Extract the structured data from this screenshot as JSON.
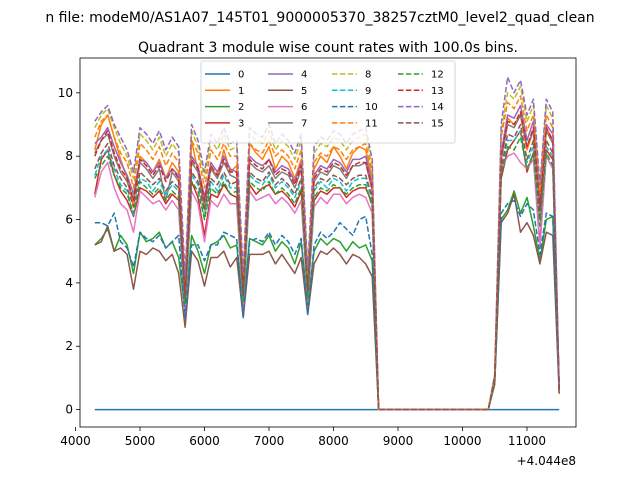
{
  "chart_data": {
    "type": "line",
    "suptitle": "n file: modeM0/AS1A07_145T01_9000005370_38257cztM0_level2_quad_clean",
    "title": "Quadrant 3 module wise count rates with 100.0s bins.",
    "xlabel": "",
    "ylabel": "",
    "offset_label": "+4.044e8",
    "xlim": [
      4070,
      11760
    ],
    "ylim": [
      -0.55,
      11.1
    ],
    "xticks": [
      4000,
      5000,
      6000,
      7000,
      8000,
      9000,
      10000,
      11000
    ],
    "xtick_labels": [
      "4000",
      "5000",
      "6000",
      "7000",
      "8000",
      "9000",
      "10000",
      "11000"
    ],
    "yticks": [
      0,
      2,
      4,
      6,
      8,
      10
    ],
    "ytick_labels": [
      "0",
      "2",
      "4",
      "6",
      "8",
      "10"
    ],
    "legend_position": "upper-center",
    "legend_columns": 4,
    "x": [
      4300,
      4400,
      4500,
      4600,
      4700,
      4800,
      4900,
      5000,
      5100,
      5200,
      5300,
      5400,
      5500,
      5600,
      5700,
      5800,
      5900,
      6000,
      6100,
      6200,
      6300,
      6400,
      6500,
      6600,
      6700,
      6800,
      6900,
      7000,
      7100,
      7200,
      7300,
      7400,
      7500,
      7600,
      7700,
      7800,
      7900,
      8000,
      8100,
      8200,
      8300,
      8400,
      8500,
      8600,
      8700,
      10400,
      10500,
      10600,
      10700,
      10800,
      10900,
      11000,
      11100,
      11200,
      11300,
      11400,
      11500
    ],
    "series": [
      {
        "name": "0",
        "color": "#1f77b4",
        "dash": "solid",
        "values": [
          0,
          0,
          0,
          0,
          0,
          0,
          0,
          0,
          0,
          0,
          0,
          0,
          0,
          0,
          0,
          0,
          0,
          0,
          0,
          0,
          0,
          0,
          0,
          0,
          0,
          0,
          0,
          0,
          0,
          0,
          0,
          0,
          0,
          0,
          0,
          0,
          0,
          0,
          0,
          0,
          0,
          0,
          0,
          0,
          0,
          0,
          0,
          0,
          0,
          0,
          0,
          0,
          0,
          0,
          0,
          0,
          0
        ]
      },
      {
        "name": "1",
        "color": "#ff7f0e",
        "dash": "solid",
        "values": [
          8.2,
          9.0,
          9.3,
          8.6,
          7.9,
          7.3,
          6.4,
          8.0,
          7.8,
          7.5,
          7.9,
          7.3,
          7.8,
          7.5,
          3.6,
          8.5,
          7.5,
          6.3,
          7.7,
          7.3,
          8.2,
          7.5,
          7.7,
          4.0,
          8.4,
          8.1,
          7.9,
          8.3,
          7.6,
          8.0,
          7.8,
          7.3,
          7.9,
          4.1,
          7.6,
          8.0,
          7.8,
          8.3,
          8.0,
          7.6,
          8.1,
          8.3,
          8.2,
          7.3,
          0,
          0,
          1.0,
          7.9,
          9.2,
          9.0,
          9.3,
          8.2,
          8.8,
          6.3,
          8.9,
          8.5,
          0.5
        ]
      },
      {
        "name": "2",
        "color": "#2ca02c",
        "dash": "solid",
        "values": [
          5.2,
          5.4,
          5.7,
          5.0,
          5.5,
          5.2,
          4.3,
          5.6,
          5.3,
          5.4,
          5.6,
          5.1,
          5.3,
          4.8,
          3.1,
          5.5,
          5.0,
          4.3,
          5.2,
          5.3,
          5.5,
          5.1,
          5.2,
          3.2,
          5.4,
          5.3,
          5.2,
          5.5,
          5.0,
          5.3,
          5.1,
          4.6,
          5.3,
          3.3,
          5.0,
          5.4,
          5.2,
          5.4,
          5.3,
          5.0,
          5.3,
          5.1,
          5.2,
          4.7,
          0,
          0,
          0.8,
          6.0,
          6.3,
          6.9,
          6.2,
          6.7,
          5.8,
          4.7,
          6.0,
          6.1,
          0.6
        ]
      },
      {
        "name": "3",
        "color": "#d62728",
        "dash": "solid",
        "values": [
          6.8,
          7.9,
          8.2,
          7.4,
          6.9,
          6.6,
          6.1,
          7.0,
          6.9,
          6.7,
          6.9,
          6.5,
          6.8,
          6.6,
          3.1,
          7.2,
          6.7,
          5.5,
          6.8,
          6.7,
          7.1,
          6.8,
          6.7,
          3.3,
          7.1,
          6.8,
          7.0,
          7.1,
          6.8,
          6.9,
          6.7,
          6.4,
          6.9,
          3.5,
          6.6,
          6.9,
          6.8,
          7.0,
          7.0,
          6.7,
          6.9,
          7.0,
          7.0,
          6.5,
          0,
          0,
          0.9,
          7.3,
          8.2,
          8.5,
          8.8,
          7.5,
          8.1,
          5.2,
          8.2,
          7.9,
          0.6
        ]
      },
      {
        "name": "4",
        "color": "#9467bd",
        "dash": "solid",
        "values": [
          8.4,
          8.6,
          8.9,
          8.3,
          7.8,
          7.4,
          6.8,
          7.9,
          7.8,
          7.5,
          7.8,
          7.3,
          7.6,
          7.4,
          3.7,
          8.0,
          7.7,
          6.7,
          7.8,
          7.5,
          8.0,
          7.6,
          7.5,
          3.9,
          8.0,
          7.8,
          7.7,
          7.9,
          7.5,
          7.7,
          7.6,
          7.2,
          7.8,
          4.0,
          7.4,
          7.7,
          7.6,
          7.9,
          7.8,
          7.5,
          7.9,
          7.9,
          8.0,
          7.1,
          0,
          0,
          1.0,
          8.1,
          9.3,
          9.2,
          9.6,
          8.5,
          9.1,
          6.6,
          9.0,
          8.7,
          0.6
        ]
      },
      {
        "name": "5",
        "color": "#8c564b",
        "dash": "solid",
        "values": [
          5.2,
          5.3,
          5.8,
          5.0,
          5.1,
          4.9,
          3.8,
          5.0,
          4.9,
          5.1,
          5.0,
          4.7,
          4.9,
          4.3,
          2.6,
          5.0,
          4.7,
          3.9,
          4.8,
          4.8,
          5.0,
          4.5,
          4.8,
          2.9,
          4.9,
          4.9,
          4.9,
          5.0,
          4.6,
          4.9,
          4.6,
          4.3,
          4.8,
          3.0,
          4.6,
          5.0,
          4.9,
          5.1,
          4.9,
          4.6,
          4.9,
          4.8,
          4.6,
          4.2,
          0,
          0,
          0.8,
          5.9,
          6.2,
          6.8,
          5.6,
          5.9,
          5.5,
          4.6,
          5.6,
          5.5,
          0.5
        ]
      },
      {
        "name": "6",
        "color": "#e377c2",
        "dash": "solid",
        "values": [
          6.7,
          7.5,
          7.8,
          7.0,
          6.5,
          6.3,
          5.6,
          6.9,
          6.7,
          6.5,
          6.6,
          6.3,
          6.6,
          6.3,
          3.0,
          6.9,
          6.5,
          5.3,
          6.6,
          6.4,
          6.8,
          6.5,
          6.5,
          3.2,
          6.9,
          6.6,
          6.7,
          6.8,
          6.5,
          6.7,
          6.5,
          6.2,
          6.6,
          3.4,
          6.4,
          6.7,
          6.5,
          6.8,
          6.8,
          6.5,
          6.7,
          6.8,
          6.7,
          6.2,
          0,
          0,
          0.9,
          7.6,
          8.0,
          8.1,
          7.8,
          7.6,
          7.9,
          5.1,
          8.0,
          7.6,
          0.6
        ]
      },
      {
        "name": "7",
        "color": "#7f7f7f",
        "dash": "solid",
        "values": [
          8.1,
          8.5,
          8.7,
          8.0,
          7.5,
          7.2,
          6.6,
          7.8,
          7.6,
          7.3,
          7.6,
          6.6,
          7.5,
          7.2,
          3.5,
          7.8,
          7.5,
          6.5,
          7.6,
          7.3,
          7.8,
          7.4,
          7.3,
          3.7,
          7.8,
          7.6,
          7.5,
          7.7,
          7.3,
          7.5,
          7.4,
          7.0,
          7.6,
          3.8,
          7.2,
          7.5,
          7.4,
          7.7,
          7.6,
          7.3,
          7.7,
          7.7,
          7.8,
          6.9,
          0,
          0,
          1.0,
          7.9,
          9.0,
          8.9,
          9.3,
          8.3,
          8.8,
          6.4,
          8.8,
          8.4,
          0.6
        ]
      },
      {
        "name": "8",
        "color": "#bcbd22",
        "dash": "dashed",
        "values": [
          8.9,
          9.3,
          9.5,
          8.9,
          8.4,
          8.0,
          7.3,
          8.7,
          8.5,
          8.2,
          8.6,
          8.0,
          8.4,
          8.1,
          4.1,
          8.8,
          8.3,
          7.3,
          8.5,
          8.2,
          8.7,
          8.2,
          8.3,
          4.2,
          8.7,
          8.5,
          8.4,
          8.8,
          8.2,
          8.5,
          8.3,
          7.9,
          8.5,
          4.3,
          8.1,
          8.4,
          8.3,
          8.6,
          8.5,
          8.2,
          8.5,
          8.6,
          8.7,
          7.7,
          0,
          0,
          1.1,
          8.8,
          10.0,
          9.8,
          10.2,
          9.1,
          9.6,
          7.0,
          9.6,
          9.2,
          0.6
        ]
      },
      {
        "name": "9",
        "color": "#17becf",
        "dash": "dashed",
        "values": [
          7.4,
          8.0,
          8.2,
          7.6,
          7.1,
          6.9,
          6.1,
          7.3,
          7.2,
          6.9,
          7.2,
          6.8,
          7.1,
          6.9,
          3.4,
          7.4,
          7.1,
          6.1,
          7.2,
          6.9,
          7.4,
          7.0,
          7.0,
          3.5,
          7.4,
          7.2,
          7.1,
          7.4,
          7.0,
          7.2,
          7.0,
          6.7,
          7.2,
          3.6,
          6.9,
          7.2,
          7.0,
          7.3,
          7.2,
          6.9,
          7.2,
          7.3,
          7.3,
          6.6,
          0,
          0,
          0.9,
          7.5,
          8.5,
          8.5,
          8.8,
          7.8,
          8.3,
          6.0,
          8.3,
          8.0,
          0.6
        ]
      },
      {
        "name": "10",
        "color": "#1f77b4",
        "dash": "dashed",
        "values": [
          5.9,
          5.9,
          5.8,
          6.2,
          5.3,
          5.1,
          4.5,
          5.6,
          5.4,
          5.3,
          5.5,
          5.1,
          5.3,
          5.5,
          2.9,
          5.2,
          5.2,
          4.7,
          5.2,
          5.2,
          5.6,
          5.5,
          5.4,
          2.9,
          5.3,
          5.4,
          5.3,
          5.6,
          5.2,
          5.5,
          5.3,
          4.9,
          5.4,
          3.0,
          5.2,
          5.6,
          5.4,
          5.6,
          5.9,
          5.7,
          5.5,
          6.0,
          6.1,
          4.9,
          0,
          0,
          0.9,
          6.2,
          6.5,
          6.6,
          6.1,
          6.5,
          6.3,
          4.9,
          6.2,
          6.1,
          0.6
        ]
      },
      {
        "name": "11",
        "color": "#ff7f0e",
        "dash": "dashed",
        "values": [
          8.6,
          9.1,
          9.3,
          8.6,
          8.1,
          7.8,
          7.0,
          8.4,
          8.2,
          7.9,
          8.3,
          7.7,
          8.1,
          7.8,
          3.8,
          8.5,
          8.1,
          7.0,
          8.2,
          7.9,
          8.4,
          8.0,
          8.0,
          4.0,
          8.4,
          8.2,
          8.1,
          8.5,
          8.0,
          8.2,
          8.0,
          7.6,
          8.2,
          4.1,
          7.8,
          8.1,
          8.0,
          8.3,
          8.2,
          7.9,
          8.2,
          8.3,
          8.4,
          7.5,
          0,
          0,
          1.0,
          8.6,
          9.7,
          9.5,
          9.9,
          8.8,
          9.3,
          6.8,
          9.3,
          8.9,
          0.6
        ]
      },
      {
        "name": "12",
        "color": "#2ca02c",
        "dash": "dashed",
        "values": [
          7.3,
          7.7,
          8.0,
          7.4,
          7.0,
          6.8,
          6.2,
          7.2,
          7.0,
          6.8,
          7.0,
          6.6,
          6.9,
          6.7,
          3.3,
          7.2,
          6.9,
          6.0,
          7.0,
          6.8,
          7.2,
          6.8,
          6.9,
          3.4,
          7.2,
          7.0,
          6.9,
          7.2,
          6.8,
          7.0,
          6.8,
          6.5,
          7.0,
          3.5,
          6.7,
          7.0,
          6.9,
          7.1,
          7.0,
          6.8,
          7.0,
          7.1,
          7.1,
          6.4,
          0,
          0,
          0.9,
          7.4,
          8.3,
          8.2,
          8.6,
          7.6,
          8.1,
          5.8,
          8.1,
          7.7,
          0.6
        ]
      },
      {
        "name": "13",
        "color": "#d62728",
        "dash": "dashed",
        "values": [
          8.0,
          8.5,
          8.8,
          8.1,
          7.6,
          7.3,
          6.6,
          7.9,
          7.7,
          7.4,
          7.7,
          7.2,
          7.6,
          7.3,
          3.6,
          7.9,
          7.6,
          6.6,
          7.7,
          7.4,
          7.9,
          7.5,
          7.5,
          3.7,
          7.9,
          7.7,
          7.6,
          7.9,
          7.4,
          7.6,
          7.5,
          7.1,
          7.7,
          3.8,
          7.3,
          7.6,
          7.5,
          7.8,
          7.7,
          7.4,
          7.7,
          7.8,
          7.8,
          7.0,
          0,
          0,
          1.0,
          8.0,
          9.1,
          9.0,
          9.4,
          8.3,
          8.9,
          6.4,
          8.9,
          8.5,
          0.6
        ]
      },
      {
        "name": "14",
        "color": "#9467bd",
        "dash": "dashed",
        "values": [
          9.1,
          9.4,
          9.6,
          9.0,
          8.6,
          8.2,
          7.5,
          8.9,
          8.7,
          8.4,
          8.8,
          8.2,
          8.6,
          8.3,
          4.2,
          9.0,
          8.5,
          7.5,
          8.7,
          8.4,
          8.9,
          8.4,
          8.5,
          4.3,
          8.9,
          8.7,
          8.6,
          9.0,
          8.4,
          8.7,
          8.5,
          8.1,
          8.7,
          4.4,
          8.3,
          8.6,
          8.5,
          8.8,
          8.7,
          8.4,
          8.7,
          8.8,
          8.9,
          7.9,
          0,
          0,
          1.1,
          9.0,
          10.5,
          10.0,
          10.4,
          9.3,
          9.8,
          7.1,
          9.8,
          9.4,
          0.6
        ]
      },
      {
        "name": "15",
        "color": "#8c564b",
        "dash": "dashed",
        "values": [
          7.6,
          8.1,
          8.4,
          7.7,
          7.3,
          7.0,
          6.4,
          7.5,
          7.3,
          7.1,
          7.3,
          6.9,
          7.2,
          7.0,
          3.5,
          7.5,
          7.2,
          6.3,
          7.3,
          7.1,
          7.5,
          7.1,
          7.2,
          3.6,
          7.5,
          7.3,
          7.2,
          7.5,
          7.1,
          7.3,
          7.1,
          6.8,
          7.3,
          3.7,
          7.0,
          7.3,
          7.2,
          7.4,
          7.3,
          7.1,
          7.3,
          7.4,
          7.4,
          6.7,
          0,
          0,
          1.0,
          7.6,
          8.7,
          8.6,
          9.0,
          7.9,
          8.5,
          6.1,
          8.5,
          8.1,
          0.6
        ]
      }
    ]
  }
}
